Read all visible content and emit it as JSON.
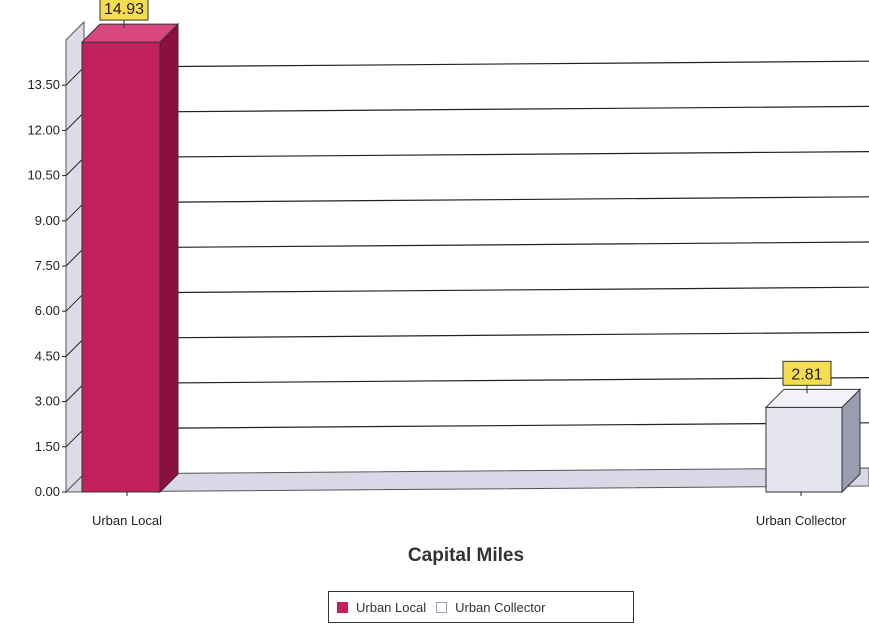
{
  "chart_data": {
    "type": "bar",
    "categories": [
      "Urban Local",
      "Urban Collector"
    ],
    "series": [
      {
        "name": "Urban Local",
        "category": "Urban Local",
        "value": 14.93,
        "color": "#c0215a"
      },
      {
        "name": "Urban Collector",
        "category": "Urban Collector",
        "value": 2.81,
        "color": "#e6e6ef"
      }
    ],
    "data_labels": [
      "14.93",
      "2.81"
    ],
    "yticks": [
      "0.00",
      "1.50",
      "3.00",
      "4.50",
      "6.00",
      "7.50",
      "9.00",
      "10.50",
      "12.00",
      "13.50"
    ],
    "ytick_values": [
      0,
      1.5,
      3,
      4.5,
      6,
      7.5,
      9,
      10.5,
      12,
      13.5
    ],
    "ylim": [
      0,
      15
    ],
    "xlabel": "Capital Miles",
    "ylabel": "",
    "title": "",
    "grid": true,
    "legend": "bottom",
    "label_color": "#f5dc50"
  }
}
